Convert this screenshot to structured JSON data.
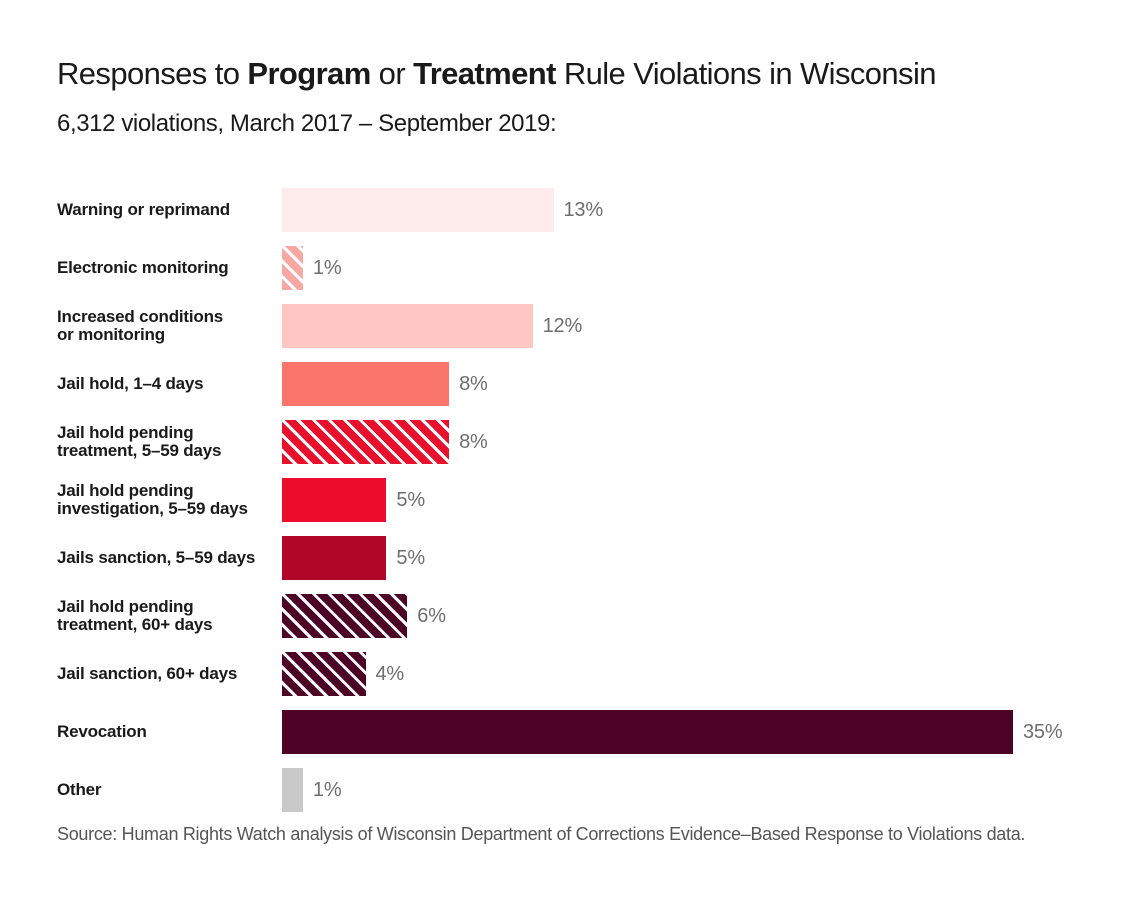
{
  "title": {
    "segments": [
      {
        "text": "Responses to ",
        "bold": false
      },
      {
        "text": "Program",
        "bold": true
      },
      {
        "text": " or ",
        "bold": false
      },
      {
        "text": "Treatment",
        "bold": true
      },
      {
        "text": " Rule Violations in Wisconsin",
        "bold": false
      }
    ],
    "plain": "Responses to Program or Treatment Rule Violations in Wisconsin"
  },
  "subtitle": "6,312 violations, March 2017 – September 2019:",
  "source": "Source: Human Rights Watch analysis of Wisconsin Department of Corrections Evidence–Based Response to Violations data.",
  "colors": {
    "title_text": "#1a1a1a",
    "label_text": "#1a1a1a",
    "value_text": "#6e6e6e",
    "source_text": "#555555",
    "hatch_stripe": "#ffffff"
  },
  "chart_data": {
    "type": "bar",
    "orientation": "horizontal",
    "unit": "%",
    "x_max": 35,
    "grid": false,
    "legend": false,
    "categories": [
      "Warning or reprimand",
      "Electronic monitoring",
      "Increased conditions or monitoring",
      "Jail hold, 1–4 days",
      "Jail hold pending treatment, 5–59 days",
      "Jail hold pending investigation, 5–59 days",
      "Jails sanction, 5–59 days",
      "Jail hold pending treatment, 60+ days",
      "Jail sanction, 60+ days",
      "Revocation",
      "Other"
    ],
    "values": [
      13,
      1,
      12,
      8,
      8,
      5,
      5,
      6,
      4,
      35,
      1
    ],
    "bars": [
      {
        "label_lines": [
          "Warning or reprimand"
        ],
        "value": 13,
        "display": "13%",
        "color": "#fdeceb",
        "hatched": false
      },
      {
        "label_lines": [
          "Electronic monitoring"
        ],
        "value": 1,
        "display": "1%",
        "color": "#f8a8a3",
        "hatched": true
      },
      {
        "label_lines": [
          "Increased conditions",
          "or monitoring"
        ],
        "value": 12,
        "display": "12%",
        "color": "#fec7c3",
        "hatched": false
      },
      {
        "label_lines": [
          "Jail hold, 1–4 days"
        ],
        "value": 8,
        "display": "8%",
        "color": "#fa766d",
        "hatched": false
      },
      {
        "label_lines": [
          "Jail hold pending",
          "treatment, 5–59 days"
        ],
        "value": 8,
        "display": "8%",
        "color": "#e8112d",
        "hatched": true
      },
      {
        "label_lines": [
          "Jail hold pending",
          "investigation, 5–59 days"
        ],
        "value": 5,
        "display": "5%",
        "color": "#ee0c2c",
        "hatched": false
      },
      {
        "label_lines": [
          "Jails sanction, 5–59 days"
        ],
        "value": 5,
        "display": "5%",
        "color": "#b20629",
        "hatched": false
      },
      {
        "label_lines": [
          "Jail hold pending",
          "treatment, 60+ days"
        ],
        "value": 6,
        "display": "6%",
        "color": "#4d0327",
        "hatched": true
      },
      {
        "label_lines": [
          "Jail sanction, 60+ days"
        ],
        "value": 4,
        "display": "4%",
        "color": "#4d0327",
        "hatched": true
      },
      {
        "label_lines": [
          "Revocation"
        ],
        "value": 35,
        "display": "35%",
        "color": "#4d0327",
        "hatched": false
      },
      {
        "label_lines": [
          "Other"
        ],
        "value": 1,
        "display": "1%",
        "color": "#c9c9c9",
        "hatched": false
      }
    ]
  }
}
